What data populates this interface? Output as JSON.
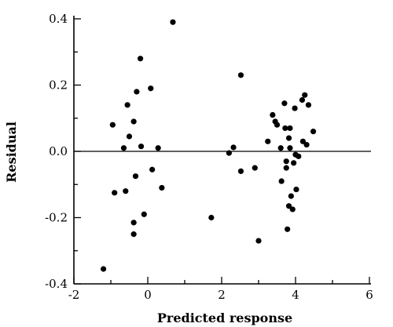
{
  "chart_data": {
    "type": "scatter",
    "title": "",
    "xlabel": "Predicted response",
    "ylabel": "Residual",
    "xlim": [
      -2,
      6
    ],
    "ylim": [
      -0.4,
      0.4
    ],
    "x_major_ticks": [
      -2,
      0,
      2,
      4,
      6
    ],
    "x_minor_ticks": [
      -1,
      1,
      3,
      5
    ],
    "y_major_ticks": [
      -0.4,
      -0.2,
      0.0,
      0.2,
      0.4
    ],
    "y_minor_ticks": [
      -0.3,
      -0.1,
      0.1,
      0.3
    ],
    "x_tick_labels": [
      "-2",
      "0",
      "2",
      "4",
      "6"
    ],
    "y_tick_labels": [
      "-0.4",
      "-0.2",
      "0.0",
      "0.2",
      "0.4"
    ],
    "reference_line_y": 0.0,
    "grid": false,
    "points": [
      {
        "x": 0.68,
        "y": 0.39
      },
      {
        "x": -0.2,
        "y": 0.28
      },
      {
        "x": 0.08,
        "y": 0.19
      },
      {
        "x": -0.3,
        "y": 0.18
      },
      {
        "x": -0.55,
        "y": 0.14
      },
      {
        "x": -0.95,
        "y": 0.08
      },
      {
        "x": -0.38,
        "y": 0.09
      },
      {
        "x": -0.5,
        "y": 0.045
      },
      {
        "x": -0.65,
        "y": 0.01
      },
      {
        "x": -0.18,
        "y": 0.015
      },
      {
        "x": 0.28,
        "y": 0.01
      },
      {
        "x": 0.12,
        "y": -0.055
      },
      {
        "x": -0.33,
        "y": -0.075
      },
      {
        "x": 0.38,
        "y": -0.11
      },
      {
        "x": -0.9,
        "y": -0.125
      },
      {
        "x": -0.6,
        "y": -0.12
      },
      {
        "x": -0.1,
        "y": -0.19
      },
      {
        "x": -0.38,
        "y": -0.215
      },
      {
        "x": -0.38,
        "y": -0.25
      },
      {
        "x": -1.2,
        "y": -0.355
      },
      {
        "x": 1.72,
        "y": -0.2
      },
      {
        "x": 2.52,
        "y": 0.23
      },
      {
        "x": 2.2,
        "y": -0.005
      },
      {
        "x": 2.32,
        "y": 0.012
      },
      {
        "x": 2.52,
        "y": -0.06
      },
      {
        "x": 2.9,
        "y": -0.05
      },
      {
        "x": 3.0,
        "y": -0.27
      },
      {
        "x": 3.25,
        "y": 0.03
      },
      {
        "x": 3.38,
        "y": 0.11
      },
      {
        "x": 3.45,
        "y": 0.09
      },
      {
        "x": 3.5,
        "y": 0.08
      },
      {
        "x": 3.6,
        "y": 0.01
      },
      {
        "x": 3.62,
        "y": -0.09
      },
      {
        "x": 3.7,
        "y": 0.145
      },
      {
        "x": 3.72,
        "y": 0.07
      },
      {
        "x": 3.75,
        "y": -0.03
      },
      {
        "x": 3.75,
        "y": -0.05
      },
      {
        "x": 3.78,
        "y": -0.235
      },
      {
        "x": 3.82,
        "y": 0.04
      },
      {
        "x": 3.82,
        "y": -0.165
      },
      {
        "x": 3.85,
        "y": 0.07
      },
      {
        "x": 3.85,
        "y": 0.01
      },
      {
        "x": 3.88,
        "y": -0.135
      },
      {
        "x": 3.92,
        "y": -0.175
      },
      {
        "x": 3.95,
        "y": -0.035
      },
      {
        "x": 3.98,
        "y": 0.13
      },
      {
        "x": 4.0,
        "y": -0.01
      },
      {
        "x": 4.02,
        "y": -0.115
      },
      {
        "x": 4.08,
        "y": -0.015
      },
      {
        "x": 4.18,
        "y": 0.155
      },
      {
        "x": 4.2,
        "y": 0.03
      },
      {
        "x": 4.25,
        "y": 0.17
      },
      {
        "x": 4.3,
        "y": 0.02
      },
      {
        "x": 4.35,
        "y": 0.14
      },
      {
        "x": 4.48,
        "y": 0.06
      }
    ]
  }
}
